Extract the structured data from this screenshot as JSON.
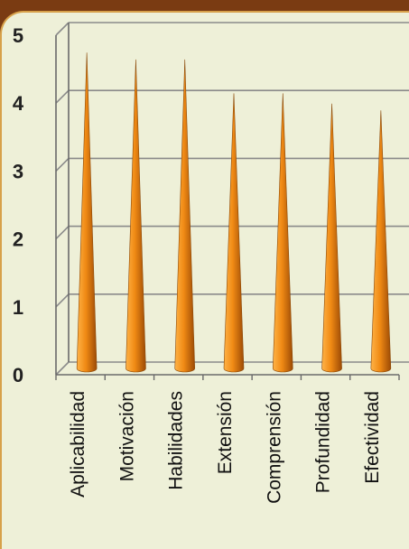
{
  "chart_data": {
    "type": "bar",
    "bar_shape": "cone",
    "categories": [
      "Aplicabilidad",
      "Motivación",
      "Habilidades",
      "Extensión",
      "Comprensión",
      "Profundidad",
      "Efectividad"
    ],
    "values": [
      4.65,
      4.55,
      4.55,
      4.05,
      4.05,
      3.9,
      3.8
    ],
    "ylim": [
      0,
      5
    ],
    "yticks": [
      "0",
      "1",
      "2",
      "3",
      "4",
      "5"
    ],
    "title": "",
    "xlabel": "",
    "ylabel": "",
    "grid": true,
    "colors": {
      "bar_light": "#ffb347",
      "bar_main": "#f08a14",
      "bar_dark": "#9c4a05",
      "grid": "#8a8a8a",
      "background": "#eef0d8"
    }
  }
}
